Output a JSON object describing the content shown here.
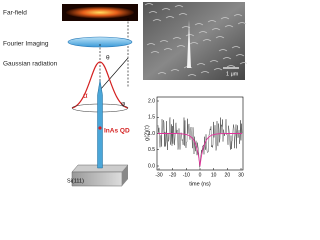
{
  "labels": {
    "far_field": "Far-field",
    "fourier": "Fourier Imaging",
    "gaussian": "Gaussian radiation",
    "theta": "θ",
    "alpha": "α",
    "phi": "φ",
    "qd": "InAs QD",
    "substrate": "Si(111)",
    "scale": "1 μm"
  },
  "plot": {
    "ylabel": "g(2)(τ)",
    "xlabel": "time (ns)",
    "yticks": [
      "2.0",
      "1.5",
      "1.0",
      "0.5",
      "0.0"
    ],
    "xticks": [
      "-30",
      "-20",
      "-10",
      "0",
      "10",
      "20",
      "30"
    ]
  }
}
